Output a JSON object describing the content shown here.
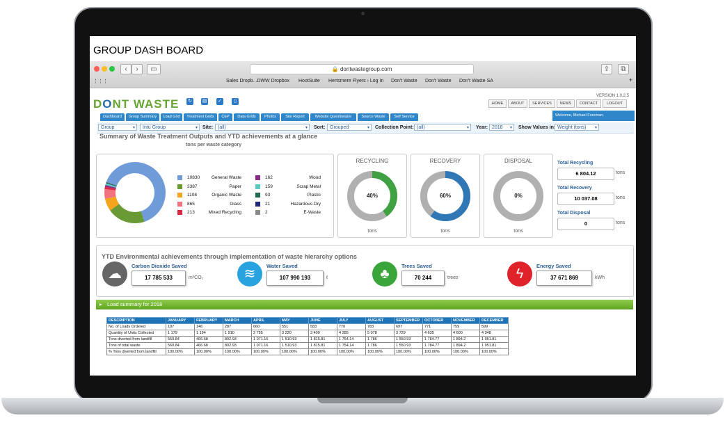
{
  "page_title": "GROUP DASH BOARD",
  "browser": {
    "url": "dontwastegroup.com",
    "bookmarks": [
      "Sales Dropb...DWW Dropbox",
      "HootSuite",
      "Hertsmere Flyers › Log In",
      "Don't Waste",
      "Don't Waste",
      "Don't Waste SA"
    ]
  },
  "header": {
    "logo_part1": "D",
    "logo_o": "O",
    "logo_part2": "NT",
    "logo_part3": "WASTE",
    "version": "VERSION 1.0.2.5",
    "links": [
      "HOME",
      "ABOUT",
      "SERVICES",
      "NEWS",
      "CONTACT",
      "LOGOUT"
    ],
    "welcome": "Welcome, Michael Foreman."
  },
  "tabs": [
    "Dashboard",
    "Group Summary",
    "Load Grid",
    "Treatment Grids",
    "CEP",
    "Data Grids",
    "Photos",
    "Site Report",
    "Website Questionaire",
    "Source Waste",
    "Self Service"
  ],
  "filters": {
    "group_select": "Group",
    "group_value": "Intu Group",
    "site_label": "Site:",
    "site_value": "(all)",
    "sort_label": "Sort:",
    "sort_value": "Grouped",
    "collection_label": "Collection Point:",
    "collection_value": "(all)",
    "year_label": "Year:",
    "year_value": "2018",
    "show_label": "Show Values in:",
    "show_value": "Weight (tons)"
  },
  "summary": {
    "title": "Summary of Waste Treatment Outputs and YTD achievements at a glance",
    "subtitle": "tons per waste category",
    "categories": [
      {
        "value": "10830",
        "name": "General Waste",
        "color": "#6f9bd8"
      },
      {
        "value": "3387",
        "name": "Paper",
        "color": "#6a9a34"
      },
      {
        "value": "1108",
        "name": "Organic Waste",
        "color": "#f4a51d"
      },
      {
        "value": "865",
        "name": "Glass",
        "color": "#f2737f"
      },
      {
        "value": "213",
        "name": "Mixed Recycling",
        "color": "#d9283f"
      },
      {
        "value": "162",
        "name": "Wood",
        "color": "#8b2a89"
      },
      {
        "value": "159",
        "name": "Scrap Metal",
        "color": "#5fc8c4"
      },
      {
        "value": "93",
        "name": "Plastic",
        "color": "#1d6b52"
      },
      {
        "value": "21",
        "name": "Hazardous Dry",
        "color": "#1f2a7a"
      },
      {
        "value": "2",
        "name": "E-Waste",
        "color": "#8a8a8a"
      }
    ]
  },
  "gauges": [
    {
      "title": "RECYCLING",
      "pct_label": "40%",
      "fraction": 0.4,
      "color": "#3fa142",
      "unit": "tons"
    },
    {
      "title": "RECOVERY",
      "pct_label": "60%",
      "fraction": 0.6,
      "color": "#2f78b5",
      "unit": "tons"
    },
    {
      "title": "DISPOSAL",
      "pct_label": "0%",
      "fraction": 0.0,
      "color": "#999999",
      "unit": "tons"
    }
  ],
  "totals": [
    {
      "label": "Total Recycling",
      "value": "6 804.12",
      "unit": "tons"
    },
    {
      "label": "Total Recovery",
      "value": "10 037.08",
      "unit": "tons"
    },
    {
      "label": "Total Disposal",
      "value": "0",
      "unit": "tons"
    }
  ],
  "environment": {
    "title": "YTD Environmental achievements through implementation of waste hierarchy options",
    "items": [
      {
        "label": "Carbon Dioxide Saved",
        "value": "17 785 533",
        "unit": "m³CO₂",
        "icon": "cloud-icon",
        "color": "#666666"
      },
      {
        "label": "Water Saved",
        "value": "107 990 193",
        "unit": "ℓ",
        "icon": "water-icon",
        "color": "#29a3e0"
      },
      {
        "label": "Trees Saved",
        "value": "70 244",
        "unit": "trees",
        "icon": "tree-icon",
        "color": "#3aa53a"
      },
      {
        "label": "Energy Saved",
        "value": "37 671 869",
        "unit": "kWh",
        "icon": "lightning-icon",
        "color": "#e0232a"
      }
    ]
  },
  "load_summary": {
    "title": "Load summary for 2018",
    "headers": [
      "DESCRIPTION",
      "JANUARY",
      "FEBRUARY",
      "MARCH",
      "APRIL",
      "MAY",
      "JUNE",
      "JULY",
      "AUGUST",
      "SEPTEMBER",
      "OCTOBER",
      "NOVEMBER",
      "DECEMBER"
    ],
    "rows": [
      [
        "No. of Loads Ordered",
        "197",
        "146",
        "287",
        "660",
        "551",
        "583",
        "770",
        "783",
        "697",
        "771",
        "759",
        "599"
      ],
      [
        "Quantity of Units Collected",
        "1 179",
        "1 194",
        "1 910",
        "2 755",
        "3 220",
        "3 409",
        "4 285",
        "5 078",
        "3 729",
        "4 635",
        "4 600",
        "4 348"
      ],
      [
        "Tons diverted from landfill",
        "560.84",
        "466.68",
        "802.93",
        "1 071.16",
        "1 510.93",
        "1 815.81",
        "1 754.14",
        "1 786",
        "1 550.93",
        "1 784.77",
        "1 894.2",
        "1 951.81"
      ],
      [
        "Tons of total waste",
        "560.84",
        "466.68",
        "802.93",
        "1 071.16",
        "1 510.93",
        "1 815.81",
        "1 754.14",
        "1 786",
        "1 550.93",
        "1 784.77",
        "1 894.2",
        "1 951.81"
      ],
      [
        "% Tons diverted from landfill",
        "100.00%",
        "100.00%",
        "100.00%",
        "100.00%",
        "100.00%",
        "100.00%",
        "100.00%",
        "100.00%",
        "100.00%",
        "100.00%",
        "100.00%",
        "100.00%"
      ]
    ]
  }
}
